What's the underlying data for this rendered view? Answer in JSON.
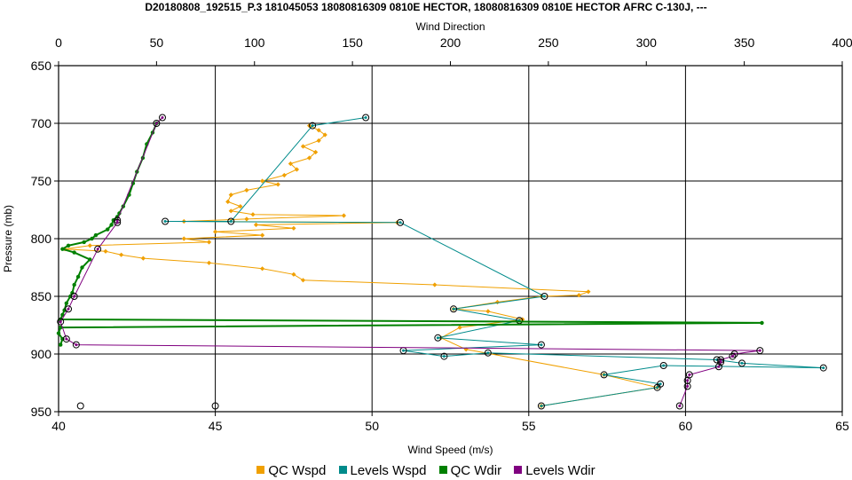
{
  "chart_data": {
    "type": "line",
    "title": "D20180808_192515_P.3 181045053 18080816309 0810E HECTOR, 18080816309 0810E HECTOR AFRC C-130J, ---",
    "xlabel": "Wind Speed (m/s)",
    "x2label": "Wind Direction",
    "ylabel": "Pressure (mb)",
    "xlim": [
      40,
      65
    ],
    "x2lim": [
      0,
      400
    ],
    "ylim": [
      950,
      650
    ],
    "xticks": [
      40,
      45,
      50,
      55,
      60,
      65
    ],
    "x2ticks": [
      0,
      50,
      100,
      150,
      200,
      250,
      300,
      350,
      400
    ],
    "yticks": [
      650,
      700,
      750,
      800,
      850,
      900,
      950
    ],
    "grid": true,
    "legend_position": "bottom",
    "series": [
      {
        "name": "QC Wspd",
        "axis": "bottom",
        "color": "#f0a000",
        "marker": "diamond",
        "points": [
          [
            48.0,
            702
          ],
          [
            48.3,
            706
          ],
          [
            48.5,
            710
          ],
          [
            48.3,
            715
          ],
          [
            47.8,
            720
          ],
          [
            48.2,
            725
          ],
          [
            48.0,
            730
          ],
          [
            47.4,
            735
          ],
          [
            47.6,
            740
          ],
          [
            47.2,
            745
          ],
          [
            46.5,
            750
          ],
          [
            47.0,
            753
          ],
          [
            46.0,
            758
          ],
          [
            45.5,
            762
          ],
          [
            45.4,
            768
          ],
          [
            45.8,
            772
          ],
          [
            45.5,
            776
          ],
          [
            46.2,
            779
          ],
          [
            49.1,
            780
          ],
          [
            46.0,
            783
          ],
          [
            44.0,
            785
          ],
          [
            50.8,
            786
          ],
          [
            46.3,
            788
          ],
          [
            47.5,
            791
          ],
          [
            45.0,
            794
          ],
          [
            46.5,
            797
          ],
          [
            44.0,
            800
          ],
          [
            44.8,
            803
          ],
          [
            41.0,
            806
          ],
          [
            40.2,
            809
          ],
          [
            41.5,
            811
          ],
          [
            42.0,
            814
          ],
          [
            42.7,
            817
          ],
          [
            44.8,
            821
          ],
          [
            46.5,
            826
          ],
          [
            47.5,
            831
          ],
          [
            47.8,
            836
          ],
          [
            52.0,
            840
          ],
          [
            56.9,
            846
          ],
          [
            56.6,
            849
          ],
          [
            55.4,
            850
          ],
          [
            54.0,
            855
          ],
          [
            52.6,
            861
          ],
          [
            53.7,
            863
          ],
          [
            54.8,
            870
          ],
          [
            52.8,
            877
          ],
          [
            52.2,
            886
          ],
          [
            53.0,
            896
          ],
          [
            57.4,
            918
          ],
          [
            59.1,
            929
          ],
          [
            55.4,
            945
          ]
        ]
      },
      {
        "name": "Levels Wspd",
        "axis": "bottom",
        "color": "#008b8b",
        "marker": "circle",
        "points": [
          [
            49.8,
            695
          ],
          [
            48.1,
            702
          ],
          [
            45.5,
            785
          ],
          [
            43.4,
            785
          ],
          [
            50.9,
            786
          ],
          [
            55.5,
            850
          ],
          [
            52.6,
            861
          ],
          [
            54.7,
            871
          ],
          [
            52.1,
            886
          ],
          [
            55.4,
            892
          ],
          [
            51.0,
            897
          ],
          [
            52.3,
            902
          ],
          [
            53.7,
            899
          ],
          [
            61.0,
            905
          ],
          [
            61.8,
            908
          ],
          [
            64.4,
            912
          ],
          [
            59.3,
            910
          ],
          [
            57.4,
            918
          ],
          [
            59.2,
            926
          ],
          [
            59.1,
            929
          ],
          [
            55.4,
            945
          ]
        ]
      },
      {
        "name": "QC Wdir",
        "axis": "top",
        "color": "#008000",
        "marker": "none",
        "points": [
          [
            50,
            700
          ],
          [
            48,
            708
          ],
          [
            45,
            718
          ],
          [
            43,
            730
          ],
          [
            40,
            742
          ],
          [
            38,
            752
          ],
          [
            36,
            762
          ],
          [
            33,
            772
          ],
          [
            31,
            778
          ],
          [
            30,
            781
          ],
          [
            28,
            784
          ],
          [
            27,
            788
          ],
          [
            25,
            792
          ],
          [
            19,
            797
          ],
          [
            17,
            800
          ],
          [
            13,
            803
          ],
          [
            5,
            806
          ],
          [
            2,
            809
          ],
          [
            8,
            812
          ],
          [
            16,
            818
          ],
          [
            12,
            825
          ],
          [
            10,
            833
          ],
          [
            8,
            840
          ],
          [
            7,
            847
          ],
          [
            6,
            850
          ],
          [
            4,
            856
          ],
          [
            3,
            862
          ],
          [
            2,
            866
          ],
          [
            1,
            870
          ],
          [
            359,
            873
          ],
          [
            1,
            877
          ],
          [
            0,
            882
          ],
          [
            2,
            887
          ],
          [
            1,
            892
          ]
        ]
      },
      {
        "name": "Levels Wdir",
        "axis": "top",
        "color": "#800080",
        "marker": "circle",
        "points": [
          [
            53,
            695
          ],
          [
            50,
            700
          ],
          [
            30,
            784
          ],
          [
            30,
            786
          ],
          [
            20,
            809
          ],
          [
            8,
            850
          ],
          [
            5,
            861
          ],
          [
            1,
            872
          ],
          [
            4,
            887
          ],
          [
            9,
            892
          ],
          [
            358,
            897
          ],
          [
            345,
            900
          ],
          [
            344,
            902
          ],
          [
            338,
            905
          ],
          [
            338,
            907
          ],
          [
            337,
            911
          ],
          [
            322,
            918
          ],
          [
            321,
            923
          ],
          [
            321,
            928
          ],
          [
            317,
            945
          ]
        ]
      }
    ],
    "markers_no_series": [
      [
        40.7,
        945
      ],
      [
        45.0,
        945
      ]
    ]
  }
}
